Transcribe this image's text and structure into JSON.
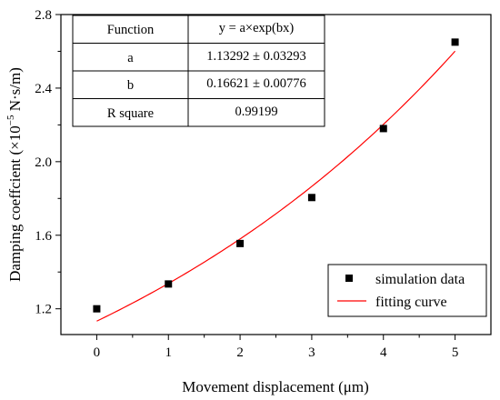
{
  "chart_data": {
    "type": "scatter",
    "xlabel": "Movement displacement (μm)",
    "ylabel_main": "Damping coeffcient (×10",
    "ylabel_exp": "−5",
    "ylabel_unit": " N·s/m)",
    "xlim": [
      -0.5,
      5.5
    ],
    "ylim": [
      1.06,
      2.8
    ],
    "x_ticks": [
      "0",
      "1",
      "2",
      "3",
      "4",
      "5"
    ],
    "y_ticks": [
      "1.2",
      "1.6",
      "2.0",
      "2.4",
      "2.8"
    ],
    "series": [
      {
        "name": "simulation data",
        "kind": "points",
        "color": "#000000",
        "x": [
          0,
          1,
          2,
          3,
          4,
          5
        ],
        "y": [
          1.2,
          1.335,
          1.555,
          1.805,
          2.18,
          2.65
        ]
      },
      {
        "name": "fitting curve",
        "kind": "line",
        "color": "#ff0000",
        "model": "y = a×exp(bx)",
        "a": 1.13292,
        "b": 0.16621
      }
    ],
    "legend_position": "bottom-right",
    "table": {
      "rows": [
        [
          "Function",
          "y = a×exp(bx)"
        ],
        [
          "a",
          "1.13292 ± 0.03293"
        ],
        [
          "b",
          "0.16621 ± 0.00776"
        ],
        [
          "R square",
          "0.99199"
        ]
      ]
    }
  }
}
